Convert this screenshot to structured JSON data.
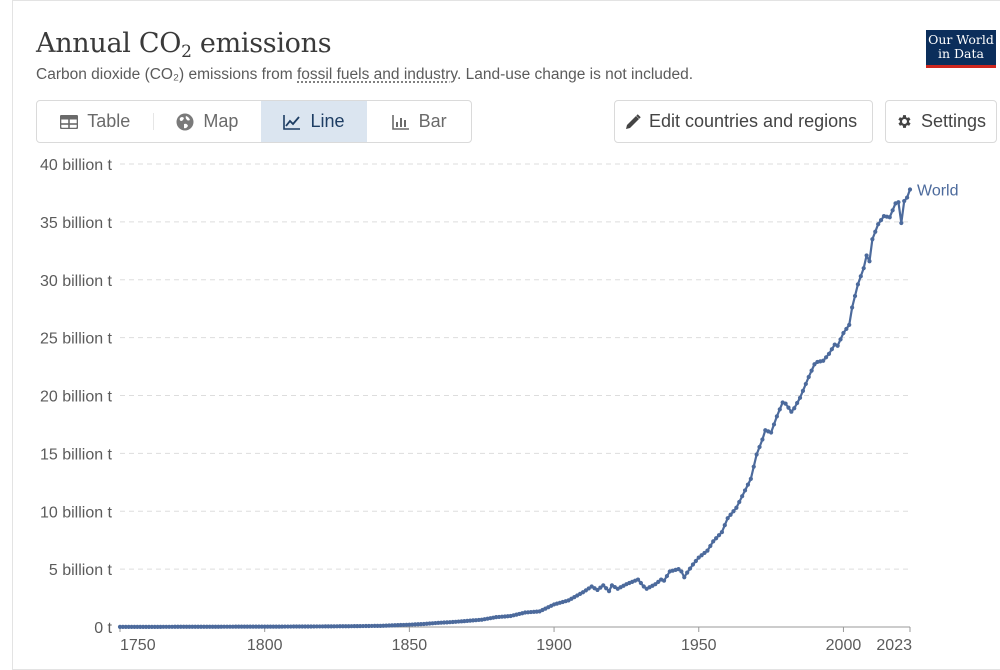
{
  "header": {
    "title_pre": "Annual CO",
    "title_sub": "2",
    "title_post": " emissions",
    "subtitle_pre": "Carbon dioxide (CO₂) emissions from ",
    "subtitle_link": "fossil fuels and industry",
    "subtitle_post": ". Land-use change is not included.",
    "logo_line1": "Our World",
    "logo_line2": "in Data"
  },
  "tabs": [
    {
      "label": "Table",
      "icon": "table-icon"
    },
    {
      "label": "Map",
      "icon": "globe-icon"
    },
    {
      "label": "Line",
      "icon": "line-chart-icon",
      "active": true
    },
    {
      "label": "Bar",
      "icon": "bar-chart-icon"
    }
  ],
  "buttons": {
    "edit_label": "Edit countries and regions",
    "settings_label": "Settings"
  },
  "colors": {
    "series": "#4c6a9c",
    "grid": "#dddddd",
    "active_tab": "#dbe5f0"
  },
  "chart_data": {
    "type": "line",
    "title": "Annual CO₂ emissions",
    "xlabel": "",
    "ylabel": "",
    "ylim": [
      0,
      40
    ],
    "xlim": [
      1750,
      2023
    ],
    "y_unit": "billion t",
    "y_ticks": [
      0,
      5,
      10,
      15,
      20,
      25,
      30,
      35,
      40
    ],
    "y_tick_labels": [
      "0 t",
      "5 billion t",
      "10 billion t",
      "15 billion t",
      "20 billion t",
      "25 billion t",
      "30 billion t",
      "35 billion t",
      "40 billion t"
    ],
    "x_ticks": [
      1750,
      1800,
      1850,
      1900,
      1950,
      2000,
      2023
    ],
    "x_tick_labels": [
      "1750",
      "1800",
      "1850",
      "1900",
      "1950",
      "2000",
      "2023"
    ],
    "grid": true,
    "series": [
      {
        "name": "World",
        "x": [
          1750,
          1760,
          1770,
          1780,
          1790,
          1800,
          1810,
          1820,
          1830,
          1840,
          1850,
          1855,
          1860,
          1865,
          1870,
          1875,
          1880,
          1885,
          1890,
          1895,
          1900,
          1905,
          1910,
          1913,
          1915,
          1917,
          1919,
          1920,
          1922,
          1925,
          1929,
          1931,
          1932,
          1935,
          1937,
          1938,
          1940,
          1943,
          1944,
          1945,
          1946,
          1948,
          1950,
          1953,
          1955,
          1958,
          1960,
          1963,
          1965,
          1968,
          1970,
          1972,
          1973,
          1975,
          1977,
          1979,
          1980,
          1982,
          1983,
          1985,
          1988,
          1990,
          1991,
          1993,
          1995,
          1997,
          1998,
          2000,
          2002,
          2003,
          2005,
          2007,
          2008,
          2009,
          2010,
          2012,
          2014,
          2016,
          2018,
          2019,
          2020,
          2021,
          2022,
          2023
        ],
        "values": [
          0.01,
          0.01,
          0.02,
          0.02,
          0.03,
          0.03,
          0.04,
          0.05,
          0.07,
          0.1,
          0.2,
          0.26,
          0.36,
          0.43,
          0.53,
          0.63,
          0.85,
          0.95,
          1.25,
          1.35,
          1.95,
          2.3,
          3.0,
          3.5,
          3.2,
          3.6,
          3.1,
          3.6,
          3.3,
          3.7,
          4.1,
          3.5,
          3.3,
          3.7,
          4.1,
          4.0,
          4.8,
          5.0,
          4.8,
          4.3,
          4.7,
          5.4,
          6.0,
          6.6,
          7.4,
          8.2,
          9.4,
          10.3,
          11.3,
          12.8,
          14.9,
          16.2,
          17.0,
          16.8,
          18.2,
          19.4,
          19.3,
          18.6,
          18.9,
          19.8,
          21.6,
          22.7,
          22.9,
          23.0,
          23.6,
          24.4,
          24.3,
          25.4,
          26.1,
          27.6,
          29.6,
          31.0,
          32.1,
          31.6,
          33.5,
          34.8,
          35.5,
          35.4,
          36.6,
          36.7,
          34.9,
          36.8,
          37.1,
          37.8
        ]
      }
    ]
  }
}
